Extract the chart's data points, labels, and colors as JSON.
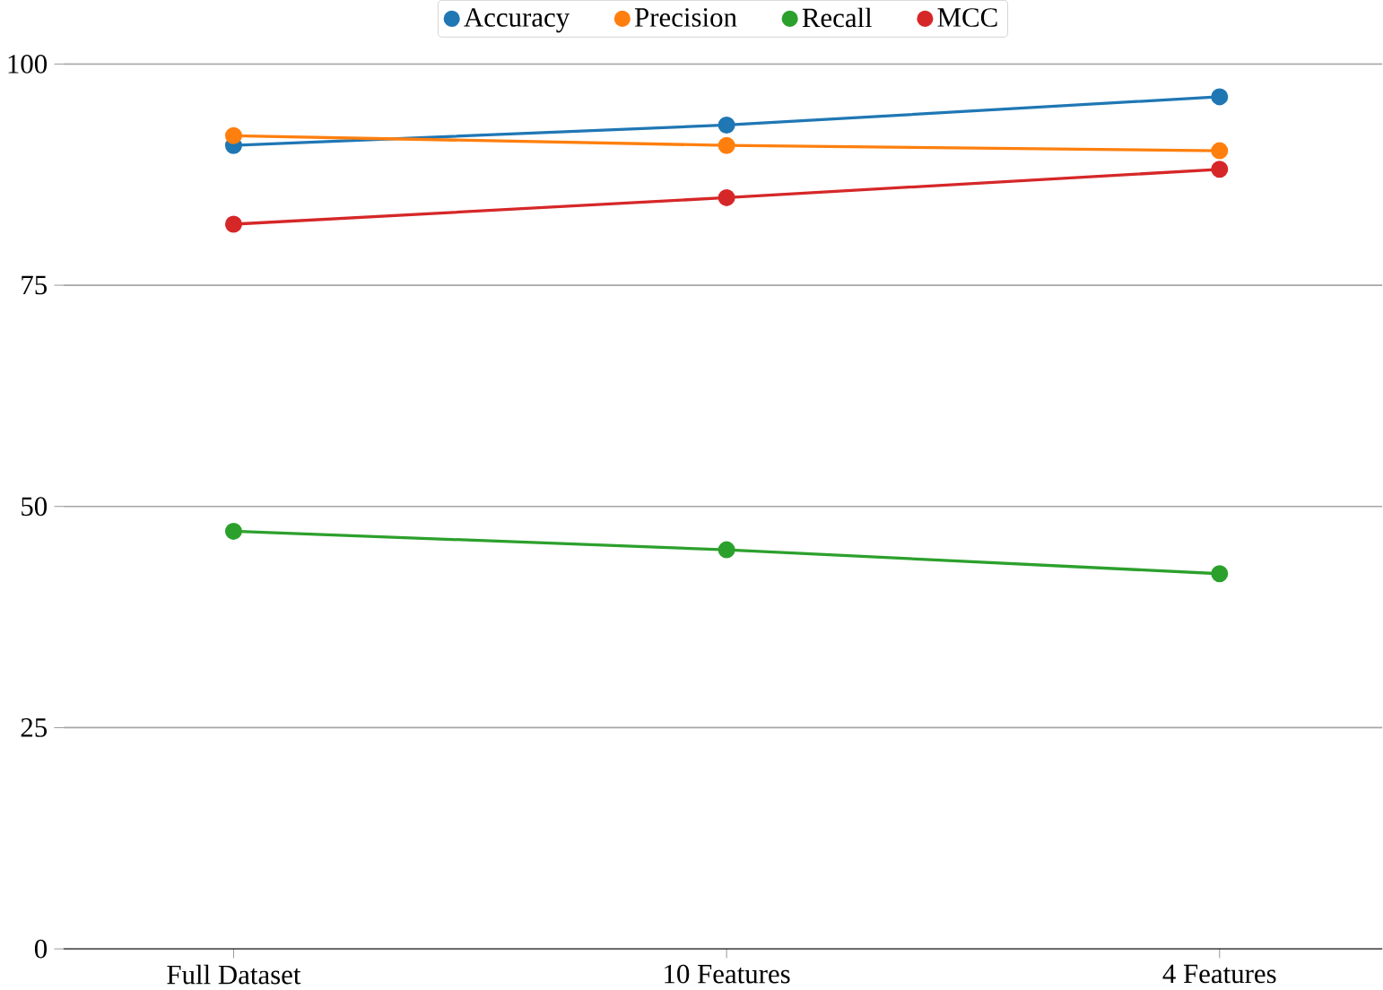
{
  "chart_data": {
    "type": "line",
    "categories": [
      "Full Dataset",
      "10 Features",
      "4 Features"
    ],
    "series": [
      {
        "name": "Accuracy",
        "color": "#1f77b4",
        "values": [
          90.8,
          93.1,
          96.3
        ]
      },
      {
        "name": "Precision",
        "color": "#ff7f0e",
        "values": [
          91.9,
          90.8,
          90.2
        ]
      },
      {
        "name": "Recall",
        "color": "#2ca02c",
        "values": [
          47.2,
          45.1,
          42.4
        ]
      },
      {
        "name": "MCC",
        "color": "#d62728",
        "values": [
          81.9,
          84.9,
          88.1
        ]
      }
    ],
    "ylim": [
      0,
      100
    ],
    "yticks": [
      0,
      25,
      50,
      75,
      100
    ],
    "grid": "y",
    "legend": "top",
    "marker": "circle",
    "line_style": "solid"
  }
}
